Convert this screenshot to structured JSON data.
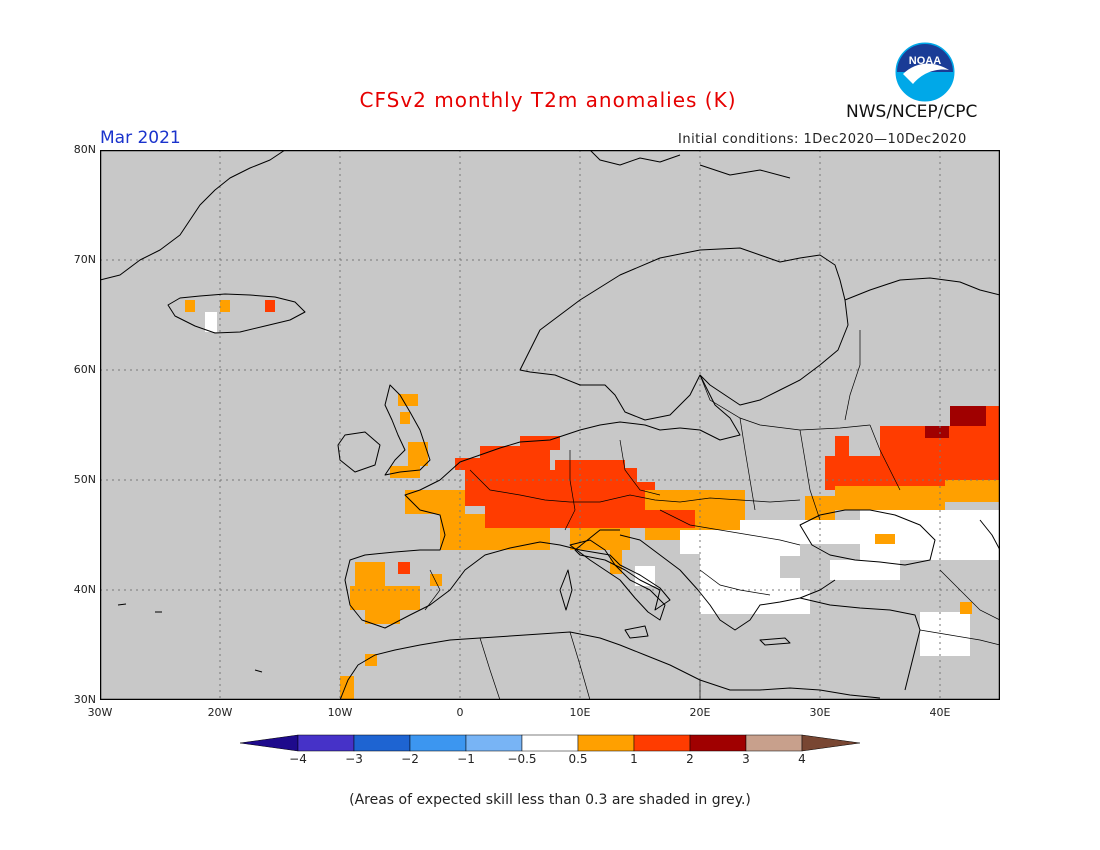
{
  "header": {
    "title": "CFSv2 monthly T2m anomalies (K)",
    "agency": "NWS/NCEP/CPC",
    "logo_text": "NOAA",
    "period": "Mar 2021",
    "initial_conditions": "Initial conditions: 1Dec2020—10Dec2020"
  },
  "map": {
    "background": "#c8c8c8",
    "lat_ticks": [
      "80N",
      "70N",
      "60N",
      "50N",
      "40N",
      "30N"
    ],
    "lon_ticks": [
      "30W",
      "20W",
      "10W",
      "0",
      "10E",
      "20E",
      "30E",
      "40E"
    ],
    "lon_range": [
      -30,
      45
    ],
    "lat_range": [
      30,
      80
    ]
  },
  "colorbar": {
    "labels": [
      "−4",
      "−3",
      "−2",
      "−1",
      "−0.5",
      "0.5",
      "1",
      "2",
      "3",
      "4"
    ],
    "colors": {
      "lt_m4": "#1e0a8c",
      "m4_m3": "#4632c8",
      "m3_m2": "#1e64d2",
      "m2_m1": "#3c96f0",
      "m1_m05": "#78b4f5",
      "neutral": "#ffffff",
      "p05_1": "#ffa000",
      "p1_2": "#ff3c00",
      "p2_3": "#a00000",
      "p3_4": "#c8a08c",
      "gt_4": "#784632"
    }
  },
  "footnote": "(Areas of expected skill less than 0.3 are shaded in grey.)"
}
